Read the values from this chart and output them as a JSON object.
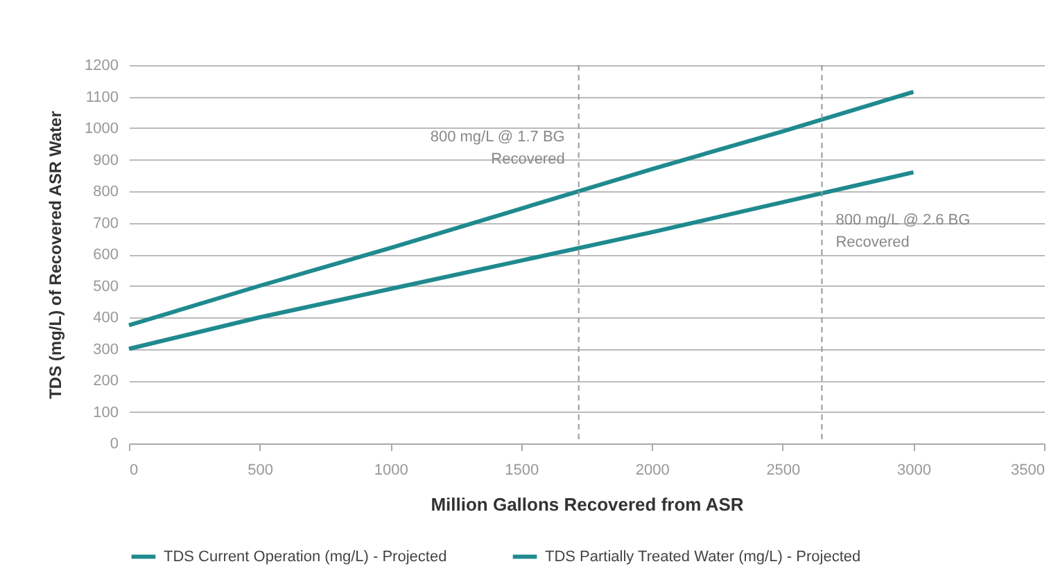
{
  "chart_data": {
    "type": "line",
    "xlabel": "Million Gallons Recovered from ASR",
    "ylabel": "TDS (mg/L) of Recovered ASR Water",
    "x": [
      0,
      500,
      1000,
      1500,
      2000,
      2500,
      3000
    ],
    "series": [
      {
        "name": "TDS Current Operation (mg/L) - Projected",
        "color": "#1f8a8f",
        "values": [
          375,
          500,
          620,
          745,
          870,
          990,
          1115
        ]
      },
      {
        "name": "TDS Partially Treated Water (mg/L) - Projected",
        "color": "#1f8a8f",
        "values": [
          300,
          400,
          490,
          580,
          670,
          765,
          860
        ]
      }
    ],
    "ref_lines": [
      {
        "axis": "x",
        "value": 1720,
        "label": "800 mg/L @ 1.7 BG\nRecovered",
        "color": "#999999",
        "line_style": "dashed"
      },
      {
        "axis": "x",
        "value": 2650,
        "label": "800 mg/L @ 2.6 BG\nRecovered",
        "color": "#999999",
        "line_style": "dashed"
      }
    ],
    "xlim": [
      0,
      3500
    ],
    "xticks": [
      0,
      500,
      1000,
      1500,
      2000,
      2500,
      3000,
      3500
    ],
    "ylim": [
      0,
      1200
    ],
    "yticks": [
      0,
      100,
      200,
      300,
      400,
      500,
      600,
      700,
      800,
      900,
      1000,
      1100,
      1200
    ],
    "grid": "y",
    "legend": "bottom",
    "marker": "none",
    "line_style": "solid"
  }
}
